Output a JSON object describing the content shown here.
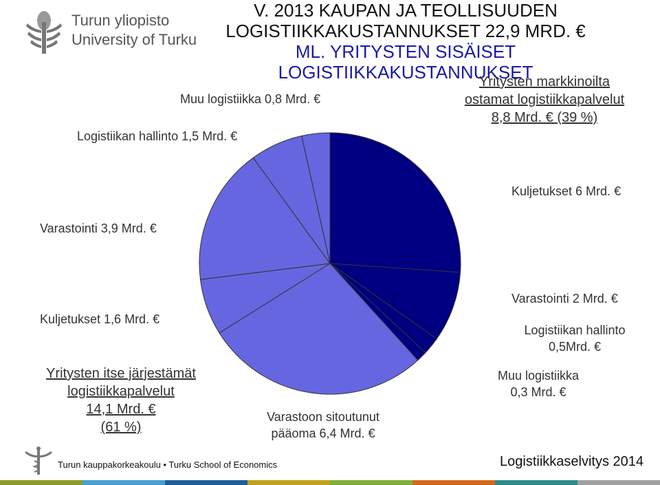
{
  "header": {
    "title_line1": "V. 2013 KAUPAN JA TEOLLISUUDEN",
    "title_line2": "LOGISTIIKKAKUSTANNUKSET 22,9 MRD. €",
    "title_line3": "ML. YRITYSTEN SISÄISET LOGISTIIKKAKUSTANNUKSET"
  },
  "logo": {
    "line1": "Turun yliopisto",
    "line2": "University of Turku"
  },
  "labels": {
    "muu_internal": "Muu logistiikka 0,8 Mrd. €",
    "hallinto_internal": "Logistiikan hallinto 1,5 Mrd. €",
    "varastointi_internal": "Varastointi 3,9 Mrd. €",
    "kuljetukset_internal": "Kuljetukset 1,6 Mrd. €",
    "internal_group_line1": "Yritysten itse järjestämät",
    "internal_group_line2": "logistiikkapalvelut",
    "internal_group_line3": "14,1 Mrd. €",
    "internal_group_line4": "(61 %)",
    "external_group_line1": "Yritysten markkinoilta",
    "external_group_line2": "ostamat logistiikkapalvelut",
    "external_group_line3": "8,8 Mrd. € (39 %)",
    "kuljetukset_external": "Kuljetukset 6 Mrd. €",
    "varastointi_external": "Varastointi 2 Mrd. €",
    "hallinto_external_line1": "Logistiikan hallinto",
    "hallinto_external_line2": "0,5Mrd. €",
    "muu_external_line1": "Muu logistiikka",
    "muu_external_line2": "0,3 Mrd. €",
    "paaoma_line1": "Varastoon sitoutunut",
    "paaoma_line2": "pääoma 6,4 Mrd. €"
  },
  "footer": {
    "left": "Turun kauppakorkeakoulu • Turku School of Economics",
    "right": "Logistiikkaselvitys 2014"
  },
  "colors": {
    "external": "#000080",
    "internal": "#6666e0",
    "edge": "#333333",
    "footer_bar": [
      "#8a9a2a",
      "#4a9fd0",
      "#1f5e99",
      "#c0a020",
      "#7fae3b",
      "#d46a1f",
      "#2f8a8a",
      "#a0a0a0"
    ]
  },
  "chart_data": {
    "type": "pie",
    "title": "V. 2013 KAUPAN JA TEOLLISUUDEN LOGISTIIKKAKUSTANNUKSET 22,9 MRD. € ML. YRITYSTEN SISÄISET LOGISTIIKKAKUSTANNUKSET",
    "unit": "Mrd. €",
    "total": 22.9,
    "slices": [
      {
        "label": "Kuljetukset 6 Mrd. €",
        "value": 6.0,
        "group": "external"
      },
      {
        "label": "Varastointi 2 Mrd. €",
        "value": 2.0,
        "group": "external"
      },
      {
        "label": "Logistiikan hallinto 0,5Mrd. €",
        "value": 0.5,
        "group": "external"
      },
      {
        "label": "Muu logistiikka 0,3 Mrd. €",
        "value": 0.3,
        "group": "external"
      },
      {
        "label": "Varastoon sitoutunut pääoma 6,4 Mrd. €",
        "value": 6.4,
        "group": "internal"
      },
      {
        "label": "Kuljetukset 1,6 Mrd. €",
        "value": 1.6,
        "group": "internal"
      },
      {
        "label": "Varastointi 3,9 Mrd. €",
        "value": 3.9,
        "group": "internal"
      },
      {
        "label": "Logistiikan hallinto 1,5 Mrd. €",
        "value": 1.5,
        "group": "internal"
      },
      {
        "label": "Muu logistiikka 0,8 Mrd. €",
        "value": 0.8,
        "group": "internal"
      }
    ],
    "groups": [
      {
        "name": "Yritysten markkinoilta ostamat logistiikkapalvelut",
        "value": 8.8,
        "percent": 39
      },
      {
        "name": "Yritysten itse järjestämät logistiikkapalvelut",
        "value": 14.1,
        "percent": 61
      }
    ]
  }
}
